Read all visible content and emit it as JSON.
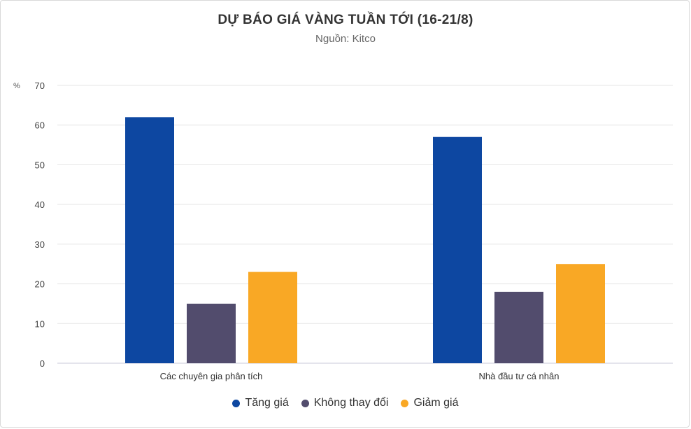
{
  "chart_data": {
    "type": "bar",
    "title": "DỰ BÁO GIÁ VÀNG TUẦN TỚI (16-21/8)",
    "subtitle": "Nguồn: Kitco",
    "ylabel": "%",
    "ylim": [
      0,
      70
    ],
    "yticks": [
      0,
      10,
      20,
      30,
      40,
      50,
      60,
      70
    ],
    "categories": [
      "Các chuyên gia phân tích",
      "Nhà đầu tư cá nhân"
    ],
    "series": [
      {
        "name": "Tăng giá",
        "color": "#0d47a1",
        "values": [
          62,
          57
        ]
      },
      {
        "name": "Không thay đổi",
        "color": "#524c6d",
        "values": [
          15,
          18
        ]
      },
      {
        "name": "Giảm giá",
        "color": "#f9a825",
        "values": [
          23,
          25
        ]
      }
    ],
    "grid": true,
    "legend_position": "bottom"
  }
}
